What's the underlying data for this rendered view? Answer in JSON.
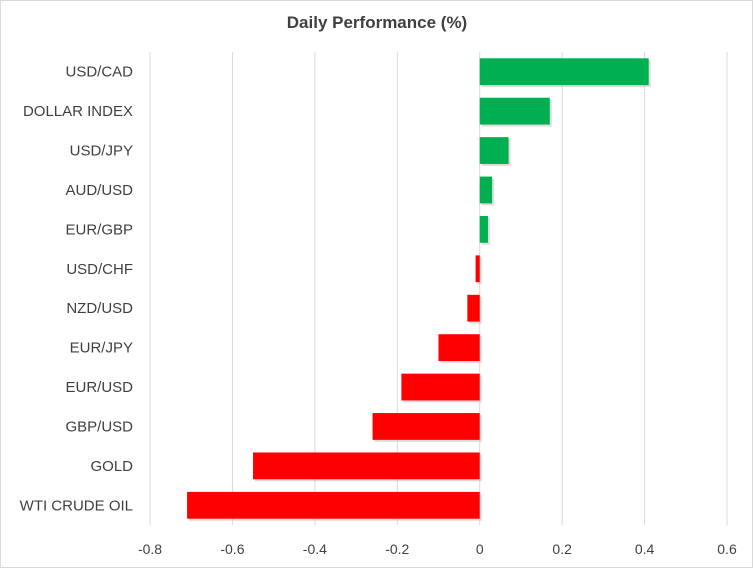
{
  "chart_data": {
    "type": "bar",
    "orientation": "horizontal",
    "title": "Daily Performance  (%)",
    "xlabel": "",
    "ylabel": "",
    "categories": [
      "USD/CAD",
      "DOLLAR INDEX",
      "USD/JPY",
      "AUD/USD",
      "EUR/GBP",
      "USD/CHF",
      "NZD/USD",
      "EUR/JPY",
      "EUR/USD",
      "GBP/USD",
      "GOLD",
      "WTI CRUDE OIL"
    ],
    "values": [
      0.41,
      0.17,
      0.07,
      0.03,
      0.02,
      -0.01,
      -0.03,
      -0.1,
      -0.19,
      -0.26,
      -0.55,
      -0.71
    ],
    "xlim": [
      -0.8,
      0.6
    ],
    "x_ticks": [
      "-0.8",
      "-0.6",
      "-0.4",
      "-0.2",
      "0",
      "0.2",
      "0.4",
      "0.6"
    ],
    "x_tick_values": [
      -0.8,
      -0.6,
      -0.4,
      -0.2,
      0,
      0.2,
      0.4,
      0.6
    ],
    "grid": "vertical",
    "legend": "none",
    "colors": {
      "positive": "#00b050",
      "negative": "#ff0000",
      "grid": "#d9d9d9",
      "text": "#404040"
    }
  }
}
